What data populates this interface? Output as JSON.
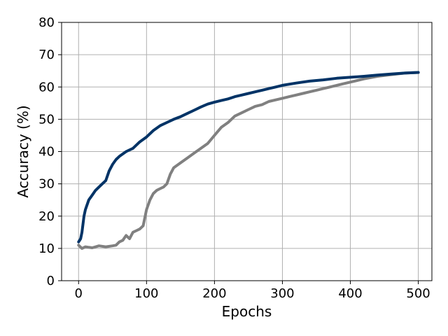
{
  "chart_data": {
    "type": "line",
    "title": "",
    "xlabel": "Epochs",
    "ylabel": "Accuracy (%)",
    "xlim": [
      -25,
      520
    ],
    "ylim": [
      0,
      80
    ],
    "xticks": [
      0,
      100,
      200,
      300,
      400,
      500
    ],
    "yticks": [
      0,
      10,
      20,
      30,
      40,
      50,
      60,
      70,
      80
    ],
    "grid": true,
    "legend": "none",
    "series": [
      {
        "color": "#808080",
        "x": [
          0,
          5,
          10,
          20,
          30,
          40,
          50,
          55,
          60,
          65,
          70,
          75,
          80,
          85,
          90,
          95,
          100,
          105,
          110,
          115,
          120,
          125,
          130,
          135,
          140,
          150,
          160,
          170,
          180,
          190,
          200,
          210,
          220,
          230,
          240,
          250,
          260,
          270,
          280,
          290,
          300,
          310,
          320,
          330,
          340,
          350,
          360,
          370,
          380,
          390,
          400,
          420,
          440,
          460,
          480,
          500
        ],
        "y": [
          11,
          10,
          10.5,
          10.2,
          10.8,
          10.5,
          10.8,
          11,
          12,
          12.5,
          14,
          13,
          15,
          15.5,
          16,
          17,
          22,
          25,
          27,
          28,
          28.5,
          29,
          30,
          33,
          35,
          36.5,
          38,
          39.5,
          41,
          42.5,
          45,
          47.5,
          49,
          51,
          52,
          53,
          54,
          54.5,
          55.5,
          56,
          56.5,
          57,
          57.5,
          58,
          58.5,
          59,
          59.5,
          60,
          60.5,
          61,
          61.5,
          62.5,
          63.3,
          63.8,
          64.3,
          64.5
        ]
      },
      {
        "color": "#003366",
        "x": [
          0,
          3,
          5,
          8,
          10,
          15,
          20,
          25,
          30,
          35,
          40,
          45,
          50,
          55,
          60,
          70,
          80,
          90,
          100,
          110,
          120,
          130,
          140,
          150,
          160,
          170,
          180,
          190,
          200,
          210,
          220,
          230,
          240,
          250,
          260,
          270,
          280,
          290,
          300,
          320,
          340,
          360,
          380,
          400,
          420,
          440,
          460,
          480,
          500
        ],
        "y": [
          12,
          13,
          15,
          20,
          22,
          25,
          26.5,
          28,
          29,
          30,
          31,
          34,
          36,
          37.5,
          38.5,
          40,
          41,
          43,
          44.5,
          46.5,
          48,
          49,
          50,
          50.8,
          51.8,
          52.8,
          53.8,
          54.7,
          55.3,
          55.8,
          56.3,
          57,
          57.5,
          58,
          58.5,
          59,
          59.5,
          60,
          60.5,
          61.2,
          61.8,
          62.2,
          62.7,
          63,
          63.3,
          63.7,
          64,
          64.3,
          64.5
        ]
      }
    ]
  }
}
